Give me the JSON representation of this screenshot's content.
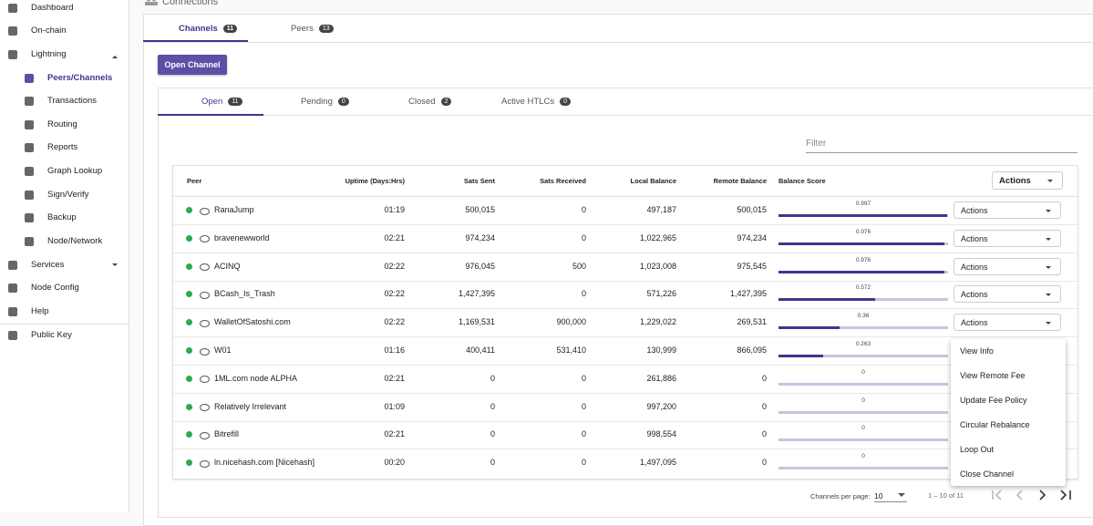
{
  "sidebar": [
    "Dashboard",
    "On-chain",
    "Lightning",
    "Peers/Channels",
    "Transactions",
    "Routing",
    "Reports",
    "Graph Lookup",
    "Sign/Verify",
    "Backup",
    "Node/Network",
    "Services",
    "Node Config",
    "Help",
    "Public Key"
  ],
  "header": {
    "title": "Connections"
  },
  "tabs": [
    {
      "label": "Channels",
      "count": 11
    },
    {
      "label": "Peers",
      "count": 13
    }
  ],
  "button": "Open Channel",
  "subtabs": [
    {
      "label": "Open",
      "count": 11
    },
    {
      "label": "Pending",
      "count": 0
    },
    {
      "label": "Closed",
      "count": 2
    },
    {
      "label": "Active HTLCs",
      "count": 0
    }
  ],
  "filter": "Filter",
  "table": {
    "columns": [
      "Peer",
      "Uptime (Days:Hrs)",
      "Sats Sent",
      "Sats Received",
      "Local Balance",
      "Remote Balance",
      "Balance Score"
    ],
    "actions_label": "Actions",
    "rows": [
      {
        "peer": "RanaJump",
        "uptime": "01:19",
        "sent": "500,015",
        "received": "0",
        "local": "497,187",
        "remote": "500,015",
        "score": 0.997
      },
      {
        "peer": "bravenewworld",
        "uptime": "02:21",
        "sent": "974,234",
        "received": "0",
        "local": "1,022,965",
        "remote": "974,234",
        "score": 0.976
      },
      {
        "peer": "ACINQ",
        "uptime": "02:22",
        "sent": "976,045",
        "received": "500",
        "local": "1,023,008",
        "remote": "975,545",
        "score": 0.976
      },
      {
        "peer": "BCash_Is_Trash",
        "uptime": "02:22",
        "sent": "1,427,395",
        "received": "0",
        "local": "571,226",
        "remote": "1,427,395",
        "score": 0.572
      },
      {
        "peer": "WalletOfSatoshi.com",
        "uptime": "02:22",
        "sent": "1,169,531",
        "received": "900,000",
        "local": "1,229,022",
        "remote": "269,531",
        "score": 0.36
      },
      {
        "peer": "W01",
        "uptime": "01:16",
        "sent": "400,411",
        "received": "531,410",
        "local": "130,999",
        "remote": "866,095",
        "score": 0.263
      },
      {
        "peer": "1ML.com node ALPHA",
        "uptime": "02:21",
        "sent": "0",
        "received": "0",
        "local": "261,886",
        "remote": "0",
        "score": 0
      },
      {
        "peer": "Relatively Irrelevant",
        "uptime": "01:09",
        "sent": "0",
        "received": "0",
        "local": "997,200",
        "remote": "0",
        "score": 0
      },
      {
        "peer": "Bitrefill",
        "uptime": "02:21",
        "sent": "0",
        "received": "0",
        "local": "998,554",
        "remote": "0",
        "score": 0
      },
      {
        "peer": "ln.nicehash.com [Nicehash]",
        "uptime": "00:20",
        "sent": "0",
        "received": "0",
        "local": "1,497,095",
        "remote": "0",
        "score": 0
      }
    ]
  },
  "menu": [
    "View Info",
    "View Remote Fee",
    "Update Fee Policy",
    "Circular Rebalance",
    "Loop Out",
    "Close Channel"
  ],
  "paginator": {
    "label": "Channels per page:",
    "page_size": "10",
    "range": "1 – 10 of 11"
  }
}
